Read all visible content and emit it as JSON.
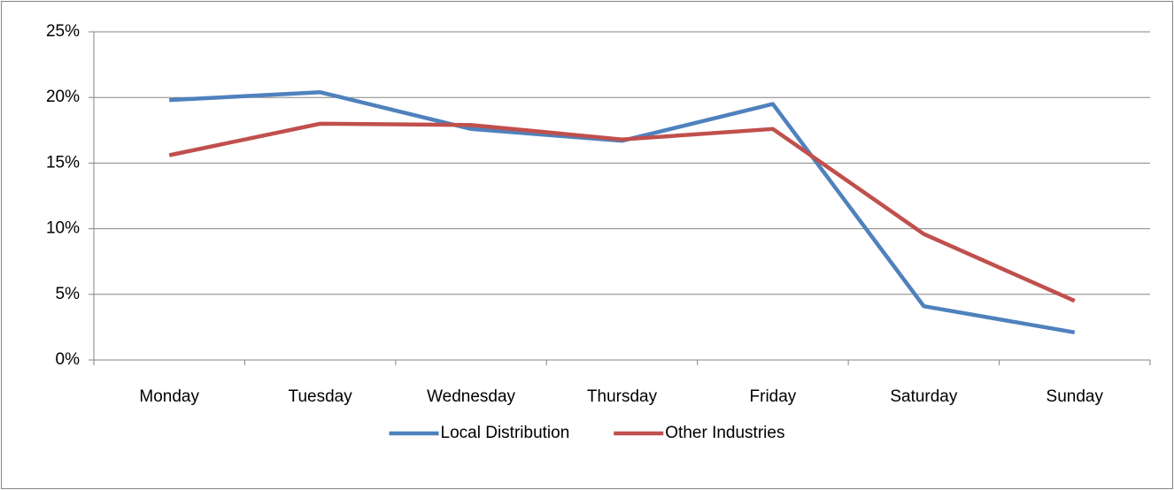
{
  "chart_data": {
    "type": "line",
    "categories": [
      "Monday",
      "Tuesday",
      "Wednesday",
      "Thursday",
      "Friday",
      "Saturday",
      "Sunday"
    ],
    "series": [
      {
        "name": "Local Distribution",
        "color": "#4f81bd",
        "values": [
          19.8,
          20.4,
          17.6,
          16.7,
          19.5,
          4.1,
          2.1
        ]
      },
      {
        "name": "Other Industries",
        "color": "#c0504d",
        "values": [
          15.6,
          18.0,
          17.9,
          16.8,
          17.6,
          9.6,
          4.5
        ]
      }
    ],
    "ylim": [
      0,
      25
    ],
    "yticks": [
      {
        "value": 0,
        "label": "0%"
      },
      {
        "value": 5,
        "label": "5%"
      },
      {
        "value": 10,
        "label": "10%"
      },
      {
        "value": 15,
        "label": "15%"
      },
      {
        "value": 20,
        "label": "20%"
      },
      {
        "value": 25,
        "label": "25%"
      }
    ],
    "grid": true,
    "legend": "bottom"
  }
}
